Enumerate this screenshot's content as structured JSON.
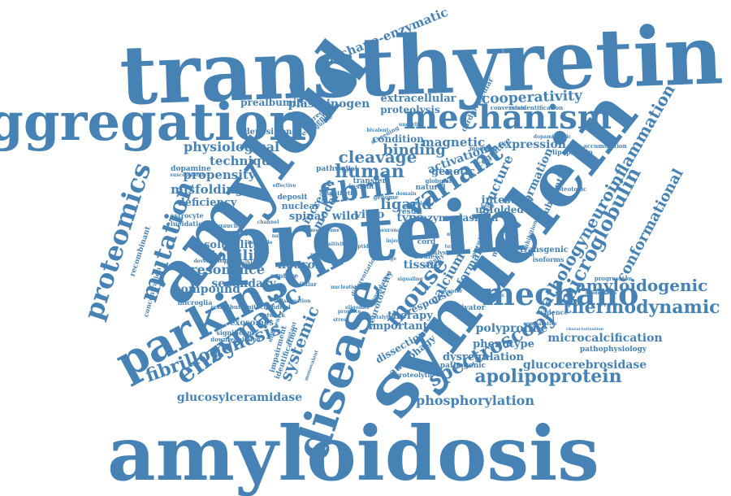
{
  "color": "#4682b4",
  "words": [
    "transthyretin",
    "amyloidosis",
    "aggregation",
    "protein",
    "amyloid",
    "synuclein",
    "mechanism",
    "parkinson",
    "disease",
    "proteomics",
    "mutation",
    "fibril",
    "variant",
    "mechano",
    "enzymatic",
    "fibrillogenesis",
    "mouse",
    "spectroscopy",
    "apolipoprotein",
    "thermodynamic",
    "amyloidogenic",
    "microglobulin",
    "pathologyneuroinflammation",
    "conformational",
    "cooperativity",
    "human",
    "cleavage",
    "binding",
    "stability",
    "resonance",
    "secondary",
    "compound",
    "physiological",
    "technique",
    "propensity",
    "misfolding",
    "deficiency",
    "phosphorylation",
    "glucosylceramidase",
    "glucocerebrosidase",
    "microcalcification",
    "polyproline",
    "phenotype",
    "dysregulation",
    "mechano-enzymatic",
    "plasminogen",
    "prealbumin",
    "extracellular",
    "proteolysis",
    "magnetic",
    "activation",
    "genetic",
    "expression",
    "formation",
    "structure",
    "calcium",
    "tissue",
    "ligand",
    "vitro",
    "neuron",
    "spinal",
    "solubility",
    "transition",
    "systemic",
    "important",
    "therapy",
    "dissection",
    "autophagy",
    "neurotoxicity",
    "exosomes",
    "recombinant",
    "concentration",
    "significant",
    "microglia",
    "deposition",
    "dopamine",
    "astrocyte",
    "elucidation",
    "susceptibility",
    "impairment",
    "identification",
    "pathophysiology",
    "evidence",
    "transgenic",
    "isoforms",
    "activator",
    "response",
    "pathogenic",
    "proteolytic",
    "intestine",
    "unfolded",
    "plasmon",
    "formalin",
    "cognitive",
    "nuclear",
    "deposit",
    "increase",
    "model",
    "wild",
    "type",
    "enzyme",
    "condition",
    "result",
    "cord",
    "insight",
    "glial",
    "bodies",
    "transfer",
    "pathway",
    "natural",
    "genome",
    "synthetic",
    "misidentification",
    "conversion",
    "cardiovascular",
    "accumulation",
    "lipoprotein",
    "proteotoxic",
    "inhibition",
    "substantia",
    "monomeric",
    "progression",
    "modulation",
    "treatment",
    "aggregate",
    "cingulate",
    "screening",
    "underlie",
    "modified",
    "bivalent",
    "downregulation",
    "mitochondrial",
    "network",
    "differentiation",
    "degradation",
    "gaucher",
    "capture",
    "development",
    "responsible",
    "contribute",
    "different",
    "mutant",
    "cellular",
    "analysis",
    "affinity",
    "globular",
    "acidic",
    "domain",
    "leakage",
    "comparative",
    "characterization",
    "monovalent",
    "catalytic",
    "interaction",
    "dopaminergic",
    "sensitivity",
    "nucleation",
    "oligomer",
    "inflammation",
    "native",
    "channel",
    "effective",
    "insoluble",
    "motor",
    "toxicity",
    "helix",
    "kinetic",
    "promote",
    "stress",
    "receptor",
    "peptide",
    "neuronal",
    "injection",
    "membrane",
    "process",
    "signaling",
    "regulation"
  ]
}
